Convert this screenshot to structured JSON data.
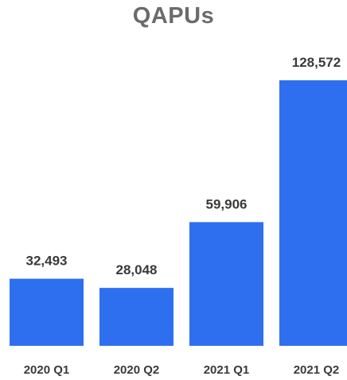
{
  "chart_data": {
    "type": "bar",
    "title": "QAPUs",
    "categories": [
      "2020 Q1",
      "2020 Q2",
      "2021 Q1",
      "2021 Q2"
    ],
    "values": [
      32493,
      28048,
      59906,
      128572
    ],
    "value_labels": [
      "32,493",
      "28,048",
      "59,906",
      "128,572"
    ],
    "xlabel": "",
    "ylabel": "",
    "ylim": [
      0,
      140000
    ],
    "grid": false,
    "bar_color": "#2e6ff0"
  }
}
